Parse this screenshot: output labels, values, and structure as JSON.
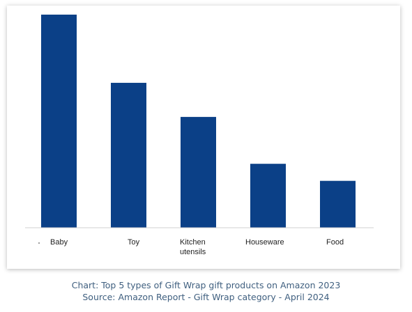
{
  "chart_data": {
    "type": "bar",
    "categories": [
      "Baby",
      "Toy",
      "Kitchen utensils",
      "Houseware",
      "Food"
    ],
    "category_lines": [
      [
        "Baby"
      ],
      [
        "Toy"
      ],
      [
        "Kitchen",
        "utensils"
      ],
      [
        "Houseware"
      ],
      [
        "Food"
      ]
    ],
    "values": [
      100,
      68,
      52,
      30,
      22
    ],
    "ylim": [
      0,
      100
    ],
    "grid": false,
    "bar_color": "#0b4087",
    "axis_color": "#d0d0d0"
  },
  "caption": {
    "line1": "Chart: Top 5 types of Gift Wrap gift products on Amazon 2023",
    "line2": "Source: Amazon Report - Gift Wrap category - April 2024"
  }
}
